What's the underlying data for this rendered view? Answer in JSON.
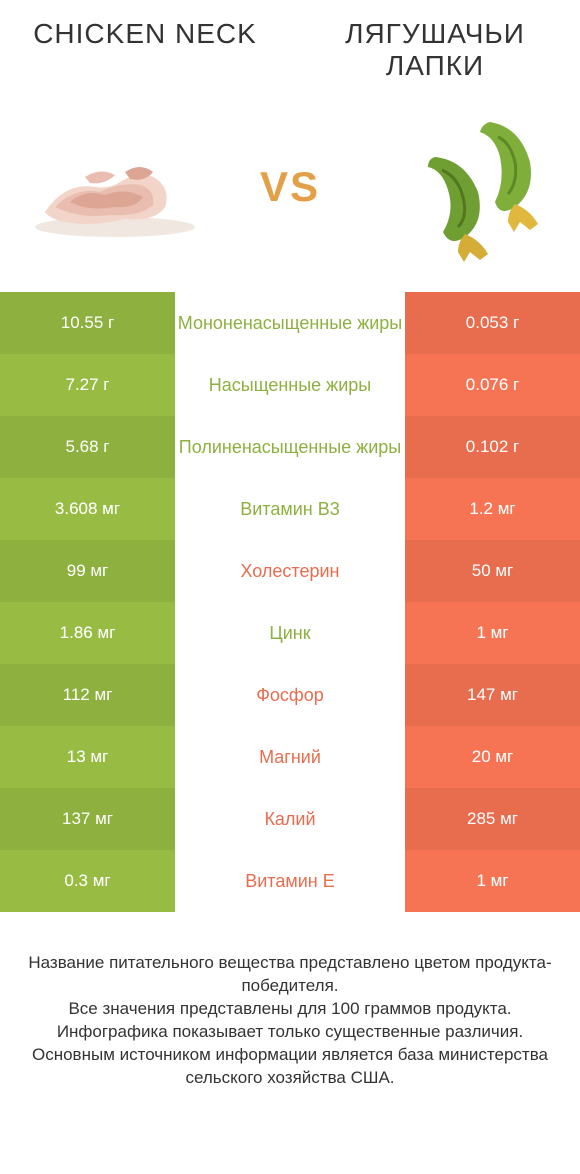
{
  "colors": {
    "green": "#8eb03f",
    "orange": "#e86d4f",
    "vs": "#e4a048",
    "mid_green_text": "#8eb03f",
    "mid_orange_text": "#e86d4f"
  },
  "header": {
    "left_title": "CHICKEN NECK",
    "right_title": "ЛЯГУШАЧЬИ ЛАПКИ"
  },
  "vs_label": "VS",
  "rows": [
    {
      "left": "10.55 г",
      "mid": "Мононенасыщенные жиры",
      "right": "0.053 г",
      "winner": "left"
    },
    {
      "left": "7.27 г",
      "mid": "Насыщенные жиры",
      "right": "0.076 г",
      "winner": "left"
    },
    {
      "left": "5.68 г",
      "mid": "Полиненасыщенные жиры",
      "right": "0.102 г",
      "winner": "left"
    },
    {
      "left": "3.608 мг",
      "mid": "Витамин B3",
      "right": "1.2 мг",
      "winner": "left"
    },
    {
      "left": "99 мг",
      "mid": "Холестерин",
      "right": "50 мг",
      "winner": "right"
    },
    {
      "left": "1.86 мг",
      "mid": "Цинк",
      "right": "1 мг",
      "winner": "left"
    },
    {
      "left": "112 мг",
      "mid": "Фосфор",
      "right": "147 мг",
      "winner": "right"
    },
    {
      "left": "13 мг",
      "mid": "Магний",
      "right": "20 мг",
      "winner": "right"
    },
    {
      "left": "137 мг",
      "mid": "Калий",
      "right": "285 мг",
      "winner": "right"
    },
    {
      "left": "0.3 мг",
      "mid": "Витамин E",
      "right": "1 мг",
      "winner": "right"
    }
  ],
  "footer_lines": [
    "Название питательного вещества представлено цветом продукта-победителя.",
    "Все значения представлены для 100 граммов продукта.",
    "Инфографика показывает только существенные различия.",
    "Основным источником информации является база министерства сельского хозяйства США."
  ]
}
